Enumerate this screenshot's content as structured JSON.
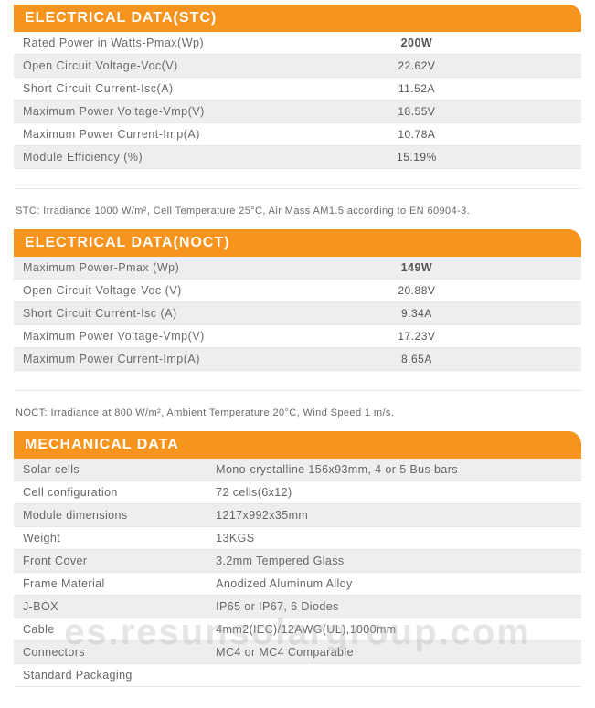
{
  "colors": {
    "header_bg": "#f7941e",
    "header_text": "#ffffff",
    "row_shade": "#edeeef",
    "row_border": "#e6e6e6",
    "text": "#6a6a6a",
    "note_text": "#6a6a6a"
  },
  "typography": {
    "header_fontsize": 16,
    "row_fontsize": 12.5,
    "note_fontsize": 11
  },
  "sections": {
    "stc": {
      "title": "ELECTRICAL DATA(STC)",
      "rows": [
        {
          "label": "Rated Power in Watts-Pmax(Wp)",
          "value": "200W",
          "shade": false,
          "bold": true
        },
        {
          "label": "Open Circuit Voltage-Voc(V)",
          "value": "22.62V",
          "shade": true
        },
        {
          "label": "Short Circuit Current-Isc(A)",
          "value": "11.52A",
          "shade": false
        },
        {
          "label": "Maximum Power Voltage-Vmp(V)",
          "value": "18.55V",
          "shade": true
        },
        {
          "label": "Maximum Power Current-Imp(A)",
          "value": "10.78A",
          "shade": false
        },
        {
          "label": "Module Efficiency (%)",
          "value": "15.19%",
          "shade": true
        }
      ],
      "note": "STC: Irradiance 1000 W/m², Cell Temperature 25°C, Air Mass AM1.5 according to EN 60904-3."
    },
    "noct": {
      "title": "ELECTRICAL DATA(NOCT)",
      "rows": [
        {
          "label": "Maximum Power-Pmax (Wp)",
          "value": "149W",
          "shade": true,
          "bold": true
        },
        {
          "label": "Open Circuit Voltage-Voc (V)",
          "value": "20.88V",
          "shade": false
        },
        {
          "label": "Short Circuit Current-Isc (A)",
          "value": "9.34A",
          "shade": true
        },
        {
          "label": "Maximum Power Voltage-Vmp(V)",
          "value": "17.23V",
          "shade": false
        },
        {
          "label": "Maximum Power Current-Imp(A)",
          "value": "8.65A",
          "shade": true
        }
      ],
      "note": "NOCT: Irradiance at 800 W/m², Ambient Temperature 20°C, Wind Speed 1 m/s."
    },
    "mech": {
      "title": "MECHANICAL DATA",
      "rows": [
        {
          "label": "Solar cells",
          "value": "Mono-crystalline 156x93mm, 4 or 5 Bus bars",
          "shade": true
        },
        {
          "label": "Cell configuration",
          "value": "72 cells(6x12)",
          "shade": false
        },
        {
          "label": "Module dimensions",
          "value": "1217x992x35mm",
          "shade": true
        },
        {
          "label": "Weight",
          "value": "13KGS",
          "shade": false
        },
        {
          "label": "Front Cover",
          "value": "3.2mm Tempered Glass",
          "shade": true
        },
        {
          "label": "Frame Material",
          "value": "Anodized Aluminum Alloy",
          "shade": false
        },
        {
          "label": "J-BOX",
          "value": "IP65 or IP67, 6 Diodes",
          "shade": true
        },
        {
          "label": "Cable",
          "value": "4mm2(IEC)/12AWG(UL),1000mm",
          "shade": false
        },
        {
          "label": "Connectors",
          "value": "MC4 or MC4 Comparable",
          "shade": true
        },
        {
          "label": "Standard Packaging",
          "value": "",
          "shade": false
        }
      ]
    }
  },
  "watermark": "es.resunsolargroup.com"
}
